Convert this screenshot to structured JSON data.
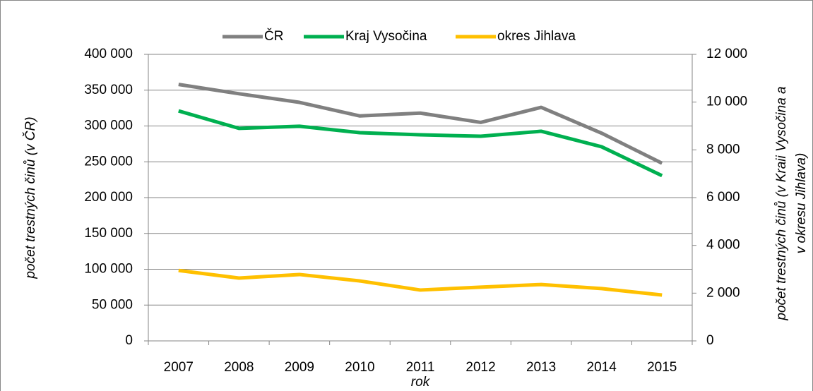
{
  "chart_data": {
    "type": "line",
    "categories": [
      "2007",
      "2008",
      "2009",
      "2010",
      "2011",
      "2012",
      "2013",
      "2014",
      "2015"
    ],
    "series": [
      {
        "name": "ČR",
        "color": "#808080",
        "values": [
          358000,
          345000,
          333000,
          314000,
          318000,
          305000,
          326000,
          290000,
          248000
        ]
      },
      {
        "name": "Kraj Vysočina",
        "color": "#00b050",
        "axis": "y2",
        "values": [
          9630,
          8900,
          8990,
          8720,
          8630,
          8570,
          8780,
          8130,
          6920
        ]
      },
      {
        "name": "okres Jihlava",
        "color": "#ffc000",
        "axis": "y2",
        "values": [
          2950,
          2630,
          2780,
          2510,
          2130,
          2250,
          2360,
          2190,
          1920
        ]
      }
    ],
    "xlabel": "rok",
    "ylabel": "počet trestných činů (v ČR)",
    "y2label": [
      "počet trestných činů (v Kraii Vysočina a",
      "v okresu Jihlava)"
    ],
    "ylim": [
      0,
      400000
    ],
    "yticks": [
      0,
      {
        "value": 50000,
        "label": "50 000"
      },
      {
        "value": 100000,
        "label": "100 000"
      },
      {
        "value": 150000,
        "label": "150 000"
      },
      {
        "value": 200000,
        "label": "200 000"
      },
      {
        "value": 250000,
        "label": "250 000"
      },
      {
        "value": 300000,
        "label": "300 000"
      },
      {
        "value": 350000,
        "label": "350 000"
      },
      {
        "value": 400000,
        "label": "400 000"
      }
    ],
    "y2lim": [
      0,
      12000
    ],
    "y2ticks": [
      0,
      {
        "value": 2000,
        "label": "2 000"
      },
      {
        "value": 4000,
        "label": "4 000"
      },
      {
        "value": 6000,
        "label": "6 000"
      },
      {
        "value": 8000,
        "label": "8 000"
      },
      {
        "value": 10000,
        "label": "10 000"
      },
      {
        "value": 12000,
        "label": "12 000"
      }
    ],
    "grid": true,
    "legend": "top"
  }
}
